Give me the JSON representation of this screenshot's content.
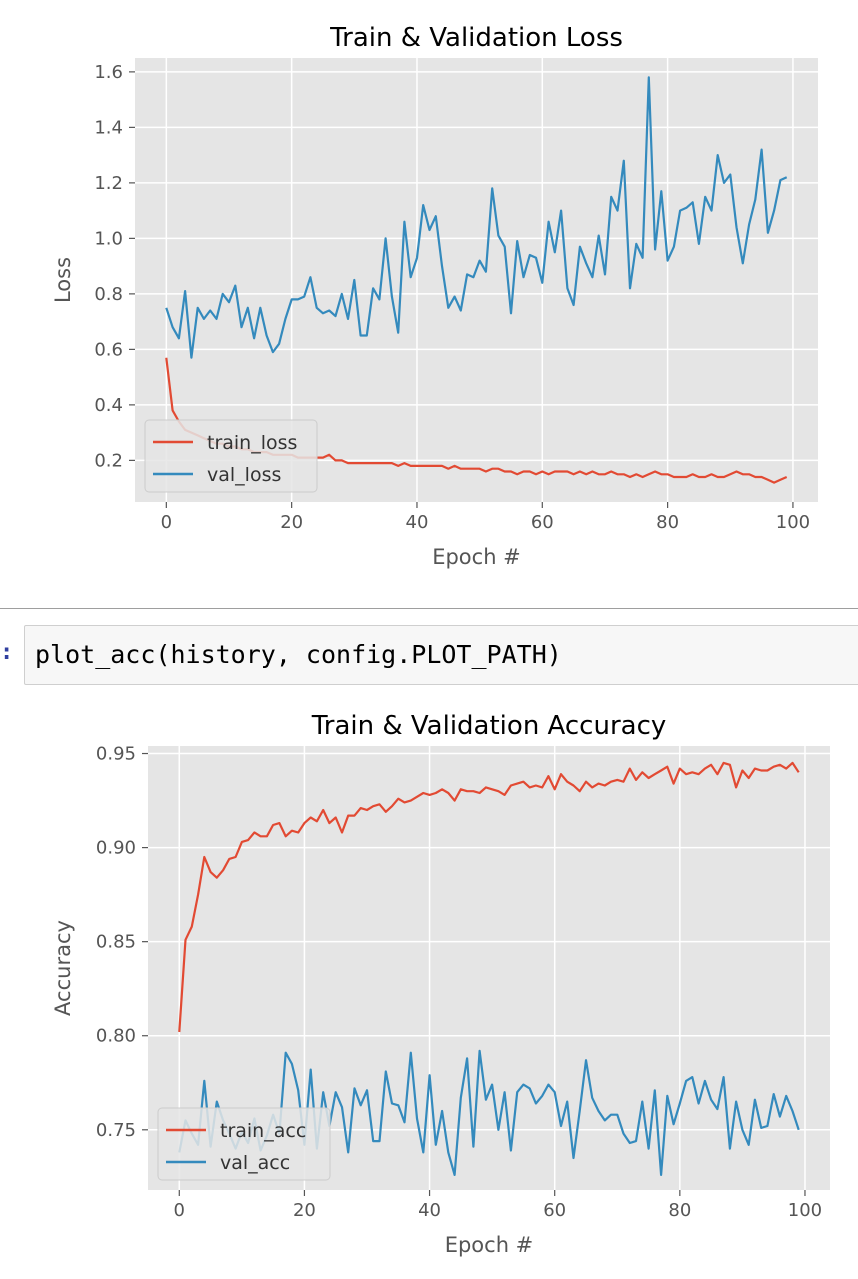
{
  "cell": {
    "prompt": ":",
    "code": "plot_acc(history, config.PLOT_PATH)"
  },
  "colors": {
    "train": "#e24a33",
    "val": "#348abd",
    "axes_bg": "#e5e5e5",
    "grid": "#ffffff"
  },
  "chart_data": [
    {
      "type": "line",
      "title": "Train & Validation Loss",
      "xlabel": "Epoch #",
      "ylabel": "Loss",
      "xlim": [
        -5,
        104
      ],
      "ylim": [
        0.05,
        1.65
      ],
      "xticks": [
        0,
        20,
        40,
        60,
        80,
        100
      ],
      "yticks": [
        0.2,
        0.4,
        0.6,
        0.8,
        1.0,
        1.2,
        1.4,
        1.6
      ],
      "ytick_labels": [
        "0.2",
        "0.4",
        "0.6",
        "0.8",
        "1.0",
        "1.2",
        "1.4",
        "1.6"
      ],
      "xtick_labels": [
        "0",
        "20",
        "40",
        "60",
        "80",
        "100"
      ],
      "legend_position": "lower-left",
      "grid": true,
      "series": [
        {
          "name": "train_loss",
          "color": "#e24a33",
          "values": [
            0.57,
            0.38,
            0.34,
            0.31,
            0.3,
            0.29,
            0.28,
            0.27,
            0.26,
            0.26,
            0.25,
            0.25,
            0.24,
            0.24,
            0.23,
            0.23,
            0.23,
            0.22,
            0.22,
            0.22,
            0.22,
            0.21,
            0.21,
            0.21,
            0.21,
            0.21,
            0.22,
            0.2,
            0.2,
            0.19,
            0.19,
            0.19,
            0.19,
            0.19,
            0.19,
            0.19,
            0.19,
            0.18,
            0.19,
            0.18,
            0.18,
            0.18,
            0.18,
            0.18,
            0.18,
            0.17,
            0.18,
            0.17,
            0.17,
            0.17,
            0.17,
            0.16,
            0.17,
            0.17,
            0.16,
            0.16,
            0.15,
            0.16,
            0.16,
            0.15,
            0.16,
            0.15,
            0.16,
            0.16,
            0.16,
            0.15,
            0.16,
            0.15,
            0.16,
            0.15,
            0.15,
            0.16,
            0.15,
            0.15,
            0.14,
            0.15,
            0.14,
            0.15,
            0.16,
            0.15,
            0.15,
            0.14,
            0.14,
            0.14,
            0.15,
            0.14,
            0.14,
            0.15,
            0.14,
            0.14,
            0.15,
            0.16,
            0.15,
            0.15,
            0.14,
            0.14,
            0.13,
            0.12,
            0.13,
            0.14
          ]
        },
        {
          "name": "val_loss",
          "color": "#348abd",
          "values": [
            0.75,
            0.68,
            0.64,
            0.81,
            0.57,
            0.75,
            0.71,
            0.74,
            0.71,
            0.8,
            0.77,
            0.83,
            0.68,
            0.75,
            0.64,
            0.75,
            0.65,
            0.59,
            0.62,
            0.71,
            0.78,
            0.78,
            0.79,
            0.86,
            0.75,
            0.73,
            0.74,
            0.72,
            0.8,
            0.71,
            0.85,
            0.65,
            0.65,
            0.82,
            0.78,
            1.0,
            0.79,
            0.66,
            1.06,
            0.86,
            0.93,
            1.12,
            1.03,
            1.08,
            0.9,
            0.75,
            0.79,
            0.74,
            0.87,
            0.86,
            0.92,
            0.88,
            1.18,
            1.01,
            0.97,
            0.73,
            0.99,
            0.86,
            0.94,
            0.93,
            0.84,
            1.06,
            0.95,
            1.1,
            0.82,
            0.76,
            0.97,
            0.91,
            0.86,
            1.01,
            0.87,
            1.15,
            1.1,
            1.28,
            0.82,
            0.98,
            0.93,
            1.58,
            0.96,
            1.17,
            0.92,
            0.97,
            1.1,
            1.11,
            1.13,
            0.98,
            1.15,
            1.1,
            1.3,
            1.2,
            1.23,
            1.04,
            0.91,
            1.05,
            1.14,
            1.32,
            1.02,
            1.1,
            1.21,
            1.22
          ]
        }
      ]
    },
    {
      "type": "line",
      "title": "Train & Validation Accuracy",
      "xlabel": "Epoch #",
      "ylabel": "Accuracy",
      "xlim": [
        -5,
        104
      ],
      "ylim": [
        0.718,
        0.954
      ],
      "xticks": [
        0,
        20,
        40,
        60,
        80,
        100
      ],
      "yticks": [
        0.75,
        0.8,
        0.85,
        0.9,
        0.95
      ],
      "ytick_labels": [
        "0.75",
        "0.80",
        "0.85",
        "0.90",
        "0.95"
      ],
      "xtick_labels": [
        "0",
        "20",
        "40",
        "60",
        "80",
        "100"
      ],
      "legend_position": "lower-left",
      "grid": true,
      "series": [
        {
          "name": "train_acc",
          "color": "#e24a33",
          "values": [
            0.802,
            0.851,
            0.858,
            0.875,
            0.895,
            0.887,
            0.884,
            0.888,
            0.894,
            0.895,
            0.903,
            0.904,
            0.908,
            0.906,
            0.906,
            0.912,
            0.913,
            0.906,
            0.909,
            0.908,
            0.913,
            0.916,
            0.914,
            0.92,
            0.913,
            0.916,
            0.908,
            0.917,
            0.917,
            0.921,
            0.92,
            0.922,
            0.923,
            0.919,
            0.922,
            0.926,
            0.924,
            0.925,
            0.927,
            0.929,
            0.928,
            0.929,
            0.931,
            0.929,
            0.925,
            0.931,
            0.93,
            0.93,
            0.929,
            0.932,
            0.931,
            0.93,
            0.928,
            0.933,
            0.934,
            0.935,
            0.932,
            0.933,
            0.932,
            0.938,
            0.931,
            0.939,
            0.935,
            0.933,
            0.93,
            0.935,
            0.932,
            0.934,
            0.933,
            0.935,
            0.936,
            0.935,
            0.942,
            0.936,
            0.94,
            0.937,
            0.939,
            0.941,
            0.943,
            0.934,
            0.942,
            0.939,
            0.94,
            0.939,
            0.942,
            0.944,
            0.939,
            0.945,
            0.944,
            0.932,
            0.941,
            0.937,
            0.942,
            0.941,
            0.941,
            0.943,
            0.944,
            0.942,
            0.945,
            0.94
          ]
        },
        {
          "name": "val_acc",
          "color": "#348abd",
          "values": [
            0.738,
            0.755,
            0.748,
            0.742,
            0.776,
            0.741,
            0.765,
            0.755,
            0.748,
            0.74,
            0.749,
            0.743,
            0.756,
            0.739,
            0.747,
            0.758,
            0.748,
            0.791,
            0.785,
            0.771,
            0.742,
            0.782,
            0.74,
            0.77,
            0.752,
            0.77,
            0.762,
            0.738,
            0.772,
            0.763,
            0.771,
            0.744,
            0.744,
            0.781,
            0.764,
            0.763,
            0.754,
            0.791,
            0.756,
            0.738,
            0.779,
            0.742,
            0.76,
            0.738,
            0.726,
            0.767,
            0.788,
            0.741,
            0.792,
            0.766,
            0.774,
            0.75,
            0.77,
            0.739,
            0.77,
            0.774,
            0.772,
            0.764,
            0.768,
            0.774,
            0.77,
            0.752,
            0.765,
            0.735,
            0.76,
            0.787,
            0.767,
            0.76,
            0.755,
            0.758,
            0.758,
            0.748,
            0.743,
            0.744,
            0.765,
            0.74,
            0.771,
            0.726,
            0.768,
            0.753,
            0.764,
            0.776,
            0.778,
            0.764,
            0.776,
            0.766,
            0.761,
            0.778,
            0.74,
            0.765,
            0.75,
            0.742,
            0.766,
            0.751,
            0.752,
            0.769,
            0.757,
            0.768,
            0.76,
            0.75
          ]
        }
      ]
    }
  ]
}
